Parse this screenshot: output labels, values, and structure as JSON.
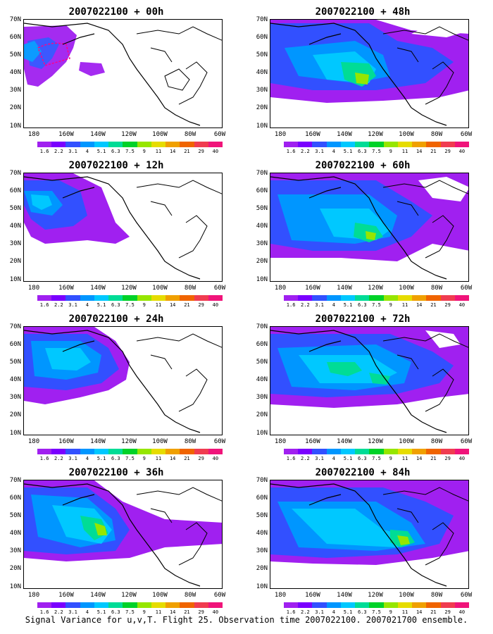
{
  "colorbar": {
    "colors": [
      "#a020f0",
      "#7a00ff",
      "#3250ff",
      "#0096ff",
      "#00c8ff",
      "#00dc96",
      "#00d228",
      "#96e600",
      "#e6dc00",
      "#f0a000",
      "#f06400",
      "#f03c50",
      "#f0147a"
    ],
    "labels": [
      "1.6",
      "2.2",
      "3.1",
      "4",
      "5.1",
      "6.3",
      "7.5",
      "9",
      "11",
      "14",
      "21",
      "29",
      "40"
    ]
  },
  "axes": {
    "lat_labels": [
      "70N",
      "60N",
      "50N",
      "40N",
      "30N",
      "20N",
      "10N"
    ],
    "lon_labels": [
      "180",
      "160W",
      "140W",
      "120W",
      "100W",
      "80W",
      "60W"
    ]
  },
  "panels": [
    {
      "title": "2007022100 + 00h"
    },
    {
      "title": "2007022100 + 48h"
    },
    {
      "title": "2007022100 + 12h"
    },
    {
      "title": "2007022100 + 60h"
    },
    {
      "title": "2007022100 + 24h"
    },
    {
      "title": "2007022100 + 72h"
    },
    {
      "title": "2007022100 + 36h"
    },
    {
      "title": "2007022100 + 84h"
    }
  ],
  "footer": {
    "caption": "Signal Variance for u,v,T. Flight 25. Observation time 2007022100. 2007021700 ensemble."
  }
}
